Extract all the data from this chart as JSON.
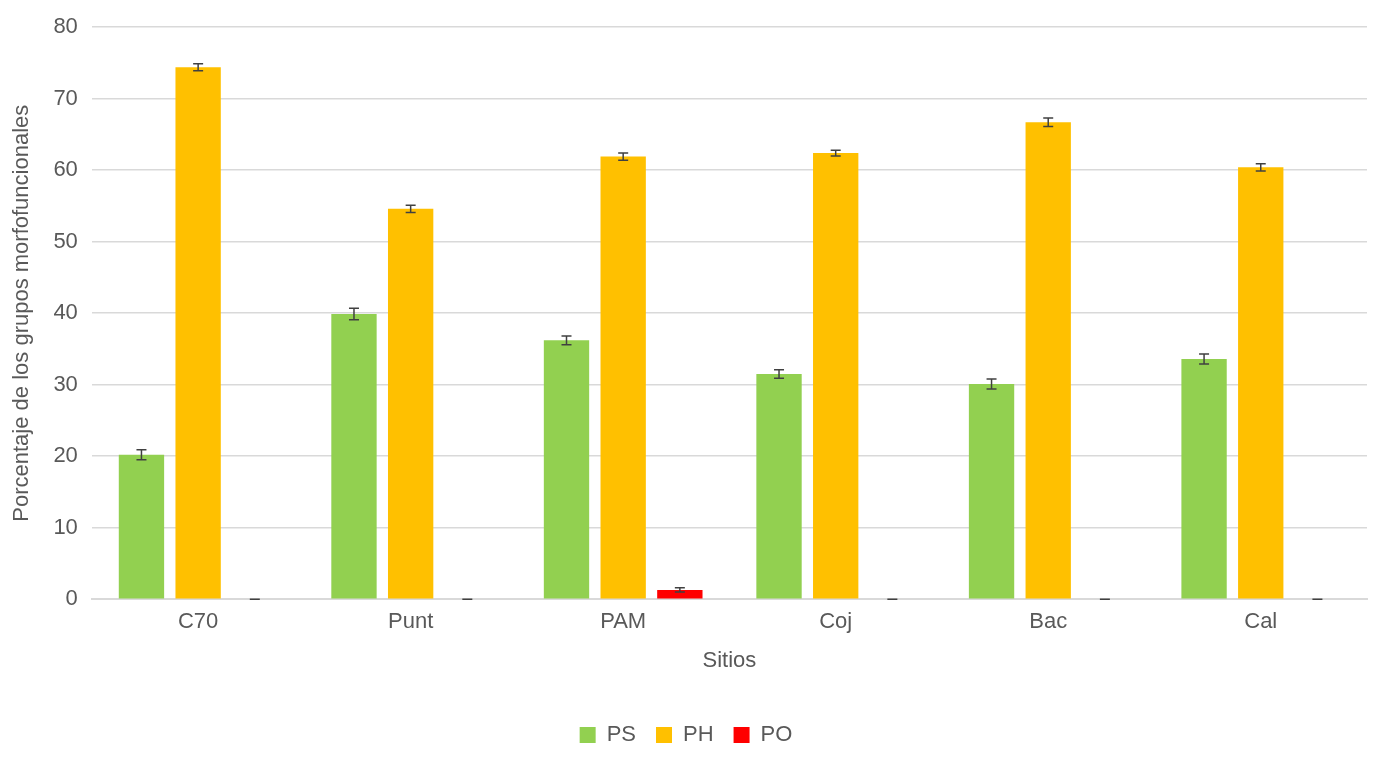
{
  "chart_data": {
    "type": "bar",
    "xlabel": "Sitios",
    "ylabel": "Porcentaje de los grupos morfofuncionales",
    "categories": [
      "C70",
      "Punt",
      "PAM",
      "Coj",
      "Bac",
      "Cal"
    ],
    "series": [
      {
        "name": "PS",
        "color": "#92d050",
        "values": [
          20.2,
          39.9,
          36.2,
          31.5,
          30.1,
          33.6
        ],
        "errors": [
          0.7,
          0.8,
          0.6,
          0.6,
          0.7,
          0.7
        ]
      },
      {
        "name": "PH",
        "color": "#ffc000",
        "values": [
          74.4,
          54.6,
          61.9,
          62.4,
          66.7,
          60.4
        ],
        "errors": [
          0.5,
          0.5,
          0.5,
          0.4,
          0.6,
          0.5
        ]
      },
      {
        "name": "PO",
        "color": "#ff0000",
        "values": [
          0,
          0,
          1.3,
          0,
          0,
          0
        ],
        "errors": [
          0,
          0,
          0.3,
          0,
          0,
          0
        ]
      }
    ],
    "ylim": [
      0,
      80
    ],
    "yticks": [
      0,
      10,
      20,
      30,
      40,
      50,
      60,
      70,
      80
    ],
    "grid": "y",
    "legend": "bottom"
  }
}
